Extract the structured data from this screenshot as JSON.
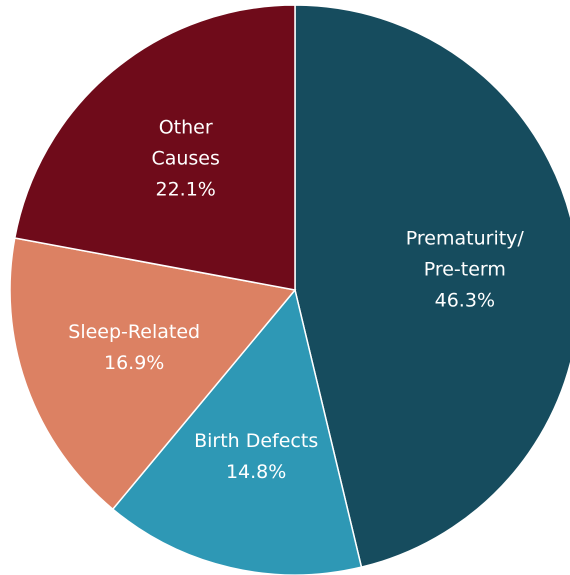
{
  "chart_data": {
    "type": "pie",
    "categories": [
      "Prematurity/\nPre-term",
      "Birth Defects",
      "Sleep-Related",
      "Other\nCauses"
    ],
    "values": [
      46.3,
      14.8,
      16.9,
      22.1
    ],
    "value_labels": [
      "46.3%",
      "14.8%",
      "16.9%",
      "22.1%"
    ],
    "colors": [
      "#164c5e",
      "#2e98b5",
      "#dc8163",
      "#6f0b1a"
    ]
  }
}
